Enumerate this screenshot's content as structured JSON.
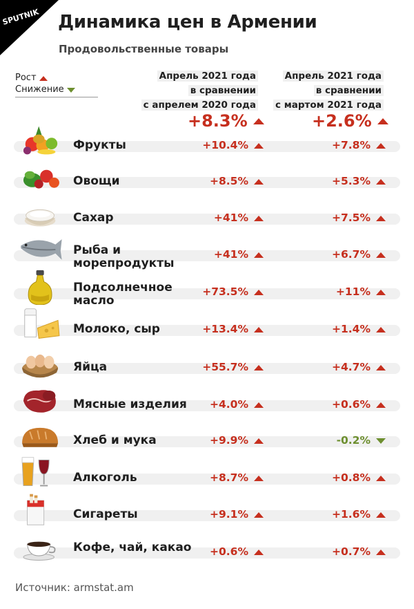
{
  "brand": "SPUTNIK",
  "title": "Динамика цен в Армении",
  "subtitle": "Продовольственные товары",
  "legend": {
    "up_label": "Рост",
    "down_label": "Снижение"
  },
  "colors": {
    "up": "#c62f1e",
    "down": "#6d8f2f",
    "row_bar": "#f0f0f0"
  },
  "columns": [
    {
      "lines": [
        "Апрель 2021 года",
        "в сравнении",
        "с апрелем 2020 года"
      ],
      "total": "+8.3%",
      "total_dir": "up"
    },
    {
      "lines": [
        "Апрель 2021 года",
        "в сравнении",
        "с мартом 2021 года"
      ],
      "total": "+2.6%",
      "total_dir": "up"
    }
  ],
  "chart_data": {
    "type": "table",
    "title": "Динамика цен в Армении",
    "subtitle": "Продовольственные товары",
    "columns": [
      "Апрель 2021 года в сравнении с апрелем 2020 года",
      "Апрель 2021 года в сравнении с мартом 2021 года"
    ],
    "totals": [
      8.3,
      2.6
    ],
    "rows": [
      {
        "name": "Фрукты",
        "icon": "fruits-icon",
        "values": [
          "+10.4%",
          "+7.8%"
        ],
        "dirs": [
          "up",
          "up"
        ],
        "num": [
          10.4,
          7.8
        ]
      },
      {
        "name": "Овощи",
        "icon": "vegetables-icon",
        "values": [
          "+8.5%",
          "+5.3%"
        ],
        "dirs": [
          "up",
          "up"
        ],
        "num": [
          8.5,
          5.3
        ]
      },
      {
        "name": "Сахар",
        "icon": "sugar-icon",
        "values": [
          "+41%",
          "+7.5%"
        ],
        "dirs": [
          "up",
          "up"
        ],
        "num": [
          41,
          7.5
        ]
      },
      {
        "name": "Рыба и морепродукты",
        "icon": "fish-icon",
        "values": [
          "+41%",
          "+6.7%"
        ],
        "dirs": [
          "up",
          "up"
        ],
        "num": [
          41,
          6.7
        ]
      },
      {
        "name": "Подсолнечное масло",
        "icon": "oil-bottle-icon",
        "values": [
          "+73.5%",
          "+11%"
        ],
        "dirs": [
          "up",
          "up"
        ],
        "num": [
          73.5,
          11
        ]
      },
      {
        "name": "Молоко, сыр",
        "icon": "milk-cheese-icon",
        "values": [
          "+13.4%",
          "+1.4%"
        ],
        "dirs": [
          "up",
          "up"
        ],
        "num": [
          13.4,
          1.4
        ]
      },
      {
        "name": "Яйца",
        "icon": "eggs-icon",
        "values": [
          "+55.7%",
          "+4.7%"
        ],
        "dirs": [
          "up",
          "up"
        ],
        "num": [
          55.7,
          4.7
        ]
      },
      {
        "name": "Мясные изделия",
        "icon": "meat-icon",
        "values": [
          "+4.0%",
          "+0.6%"
        ],
        "dirs": [
          "up",
          "up"
        ],
        "num": [
          4.0,
          0.6
        ]
      },
      {
        "name": "Хлеб и мука",
        "icon": "bread-icon",
        "values": [
          "+9.9%",
          "-0.2%"
        ],
        "dirs": [
          "up",
          "down"
        ],
        "num": [
          9.9,
          -0.2
        ]
      },
      {
        "name": "Алкоголь",
        "icon": "alcohol-icon",
        "values": [
          "+8.7%",
          "+0.8%"
        ],
        "dirs": [
          "up",
          "up"
        ],
        "num": [
          8.7,
          0.8
        ]
      },
      {
        "name": "Сигареты",
        "icon": "cigarettes-icon",
        "values": [
          "+9.1%",
          "+1.6%"
        ],
        "dirs": [
          "up",
          "up"
        ],
        "num": [
          9.1,
          1.6
        ]
      },
      {
        "name": "Кофе, чай, какао",
        "icon": "coffee-cup-icon",
        "values": [
          "+0.6%",
          "+0.7%"
        ],
        "dirs": [
          "up",
          "up"
        ],
        "num": [
          0.6,
          0.7
        ]
      }
    ]
  },
  "source": "Источник: armstat.am"
}
